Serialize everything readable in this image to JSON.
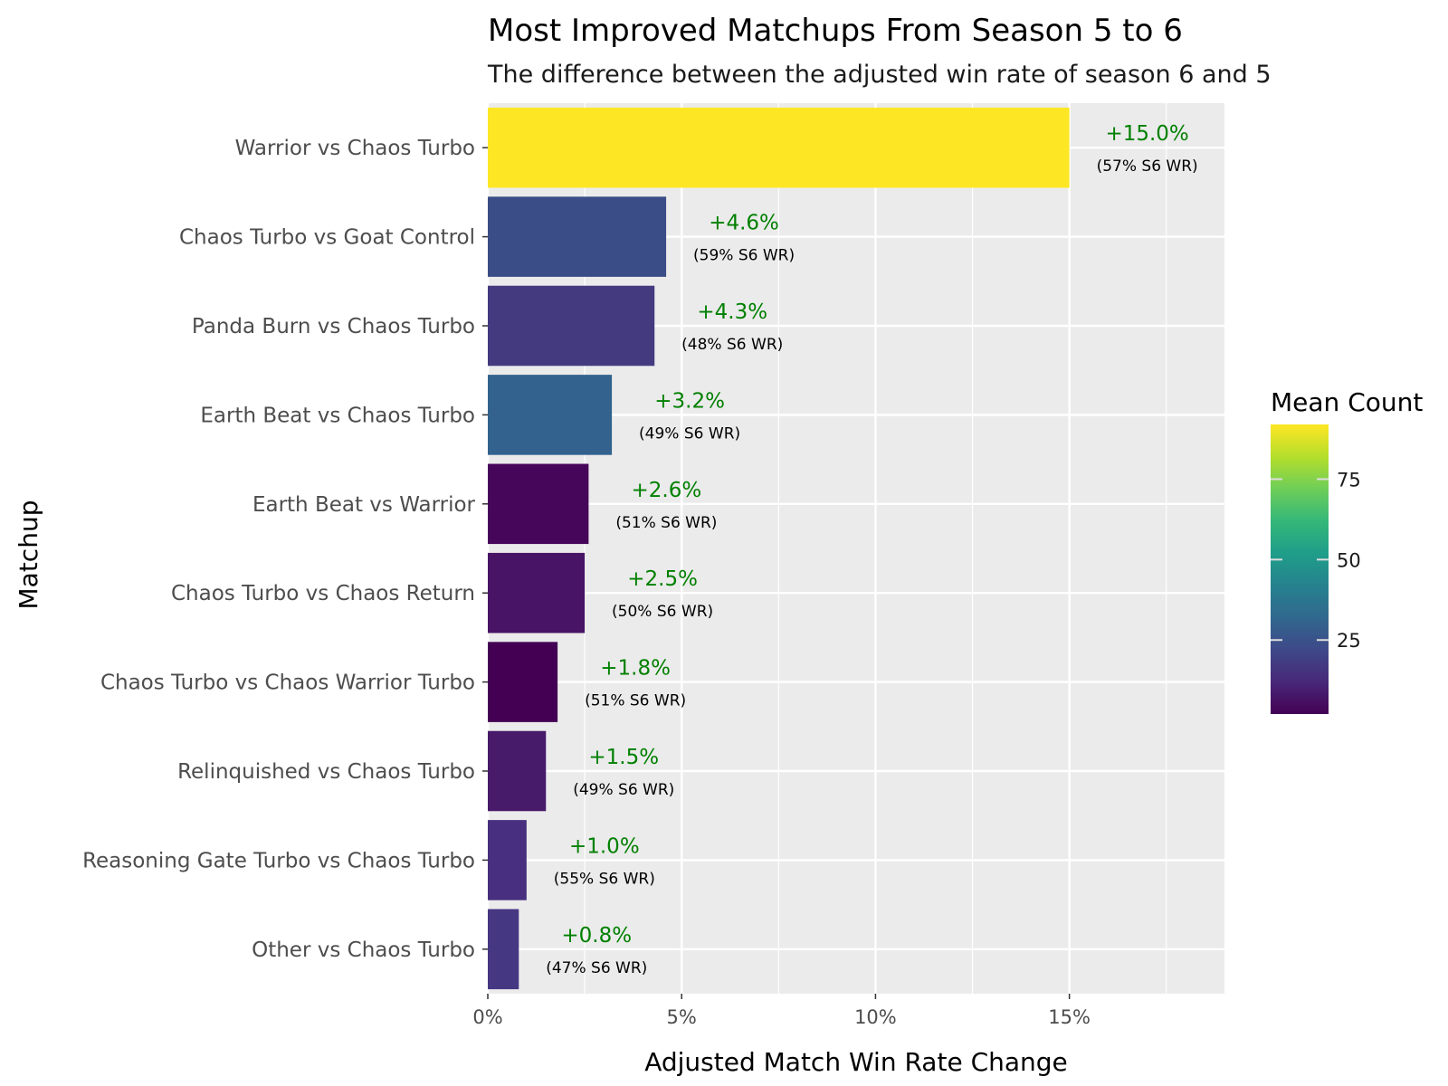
{
  "chart_data": {
    "type": "bar",
    "orientation": "horizontal",
    "title": "Most Improved Matchups From Season 5 to 6",
    "subtitle": "The difference between the adjusted win rate of season 6 and 5",
    "xlabel": "Adjusted Match Win Rate Change",
    "ylabel": "Matchup",
    "xlim": [
      0,
      19
    ],
    "x_ticks": [
      0,
      5,
      10,
      15
    ],
    "x_tick_labels": [
      "0%",
      "5%",
      "10%",
      "15%"
    ],
    "grid": true,
    "categories": [
      "Warrior vs Chaos Turbo",
      "Chaos Turbo vs Goat Control",
      "Panda Burn vs Chaos Turbo",
      "Earth Beat vs Chaos Turbo",
      "Earth Beat vs Warrior",
      "Chaos Turbo vs Chaos Return",
      "Chaos Turbo vs Chaos Warrior Turbo",
      "Relinquished vs Chaos Turbo",
      "Reasoning Gate Turbo vs Chaos Turbo",
      "Other vs Chaos Turbo"
    ],
    "values": [
      15.0,
      4.6,
      4.3,
      3.2,
      2.6,
      2.5,
      1.8,
      1.5,
      1.0,
      0.8
    ],
    "value_labels": [
      "+15.0%",
      "+4.6%",
      "+4.3%",
      "+3.2%",
      "+2.6%",
      "+2.5%",
      "+1.8%",
      "+1.5%",
      "+1.0%",
      "+0.8%"
    ],
    "secondary_labels": [
      "(57% S6 WR)",
      "(59% S6 WR)",
      "(48% S6 WR)",
      "(49% S6 WR)",
      "(51% S6 WR)",
      "(50% S6 WR)",
      "(51% S6 WR)",
      "(49% S6 WR)",
      "(55% S6 WR)",
      "(47% S6 WR)"
    ],
    "mean_count": [
      92,
      22,
      18,
      33,
      4,
      8,
      2,
      9,
      14,
      16
    ],
    "bar_colors": [
      "#fde725",
      "#3b4d87",
      "#433a80",
      "#32628d",
      "#46075a",
      "#481466",
      "#440154",
      "#471a6a",
      "#482f7f",
      "#463783"
    ],
    "value_label_color": "#008000",
    "legend": {
      "title": "Mean Count",
      "placement": "right",
      "range": [
        2,
        92
      ],
      "ticks": [
        25,
        50,
        75
      ],
      "tick_labels": [
        "25",
        "50",
        "75"
      ],
      "colormap": [
        "#440154",
        "#482878",
        "#3e4989",
        "#31688e",
        "#26828e",
        "#1f9e89",
        "#35b779",
        "#6ece58",
        "#b5de2b",
        "#fde725"
      ]
    }
  }
}
